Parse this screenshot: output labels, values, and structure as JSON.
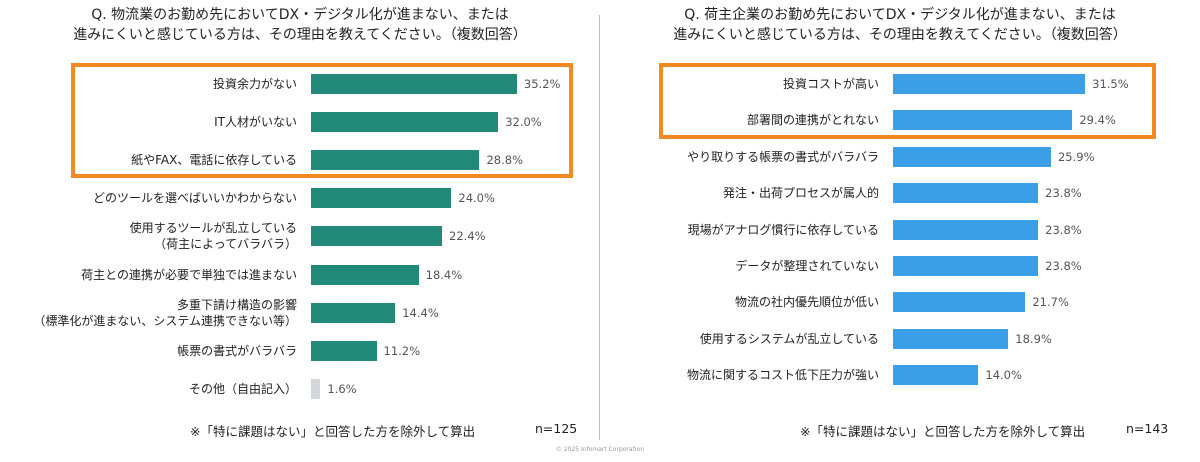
{
  "chart_data": [
    {
      "type": "bar",
      "orientation": "horizontal",
      "title": "Q. 物流業のお勤め先においてDX・デジタル化が進まない、または\n進みにくいと感じている方は、その理由を教えてください。（複数回答）",
      "categories": [
        "投資余力がない",
        "IT人材がいない",
        "紙やFAX、電話に依存している",
        "どのツールを選べばいいかわからない",
        "使用するツールが乱立している\n（荷主によってバラバラ）",
        "荷主との連携が必要で単独では進まない",
        "多重下請け構造の影響\n（標準化が進まない、システム連携できない等）",
        "帳票の書式がバラバラ",
        "その他（自由記入）"
      ],
      "values": [
        35.2,
        32.0,
        28.8,
        24.0,
        22.4,
        18.4,
        14.4,
        11.2,
        1.6
      ],
      "value_labels": [
        "35.2%",
        "32.0%",
        "28.8%",
        "24.0%",
        "22.4%",
        "18.4%",
        "14.4%",
        "11.2%",
        "1.6%"
      ],
      "colors": [
        "#218a78",
        "#218a78",
        "#218a78",
        "#218a78",
        "#218a78",
        "#218a78",
        "#218a78",
        "#218a78",
        "#d3d6da"
      ],
      "xlim": [
        0,
        40
      ],
      "note": "※「特に課題はない」と回答した方を除外して算出",
      "n": "n=125"
    },
    {
      "type": "bar",
      "orientation": "horizontal",
      "title": "Q. 荷主企業のお勤め先においてDX・デジタル化が進まない、または\n進みにくいと感じている方は、その理由を教えてください。（複数回答）",
      "categories": [
        "投資コストが高い",
        "部署間の連携がとれない",
        "やり取りする帳票の書式がバラバラ",
        "発注・出荷プロセスが属人的",
        "現場がアナログ慣行に依存している",
        "データが整理されていない",
        "物流の社内優先順位が低い",
        "使用するシステムが乱立している",
        "物流に関するコスト低下圧力が強い"
      ],
      "values": [
        31.5,
        29.4,
        25.9,
        23.8,
        23.8,
        23.8,
        21.7,
        18.9,
        14.0
      ],
      "value_labels": [
        "31.5%",
        "29.4%",
        "25.9%",
        "23.8%",
        "23.8%",
        "23.8%",
        "21.7%",
        "18.9%",
        "14.0%"
      ],
      "colors": [
        "#3a9fe6",
        "#3a9fe6",
        "#3a9fe6",
        "#3a9fe6",
        "#3a9fe6",
        "#3a9fe6",
        "#3a9fe6",
        "#3a9fe6",
        "#3a9fe6"
      ],
      "xlim": [
        0,
        40
      ],
      "note": "※「特に課題はない」と回答した方を除外して算出",
      "n": "n=143"
    }
  ],
  "footer": "© 2025 Infomart Corporation"
}
